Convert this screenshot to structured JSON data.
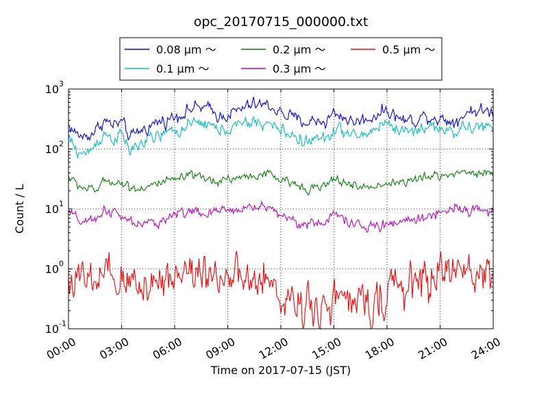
{
  "chart_data": {
    "type": "line",
    "title": "opc_20170715_000000.txt",
    "xlabel": "Time on 2017-07-15 (JST)",
    "ylabel": "Count / L",
    "xlim": [
      0,
      24
    ],
    "ylim": [
      0.1,
      1000
    ],
    "yscale": "log",
    "grid": true,
    "legend_placement": "top-center",
    "x_ticks": [
      {
        "v": 0,
        "label": "00:00"
      },
      {
        "v": 3,
        "label": "03:00"
      },
      {
        "v": 6,
        "label": "06:00"
      },
      {
        "v": 9,
        "label": "09:00"
      },
      {
        "v": 12,
        "label": "12:00"
      },
      {
        "v": 15,
        "label": "15:00"
      },
      {
        "v": 18,
        "label": "18:00"
      },
      {
        "v": 21,
        "label": "21:00"
      },
      {
        "v": 24,
        "label": "24:00"
      }
    ],
    "y_ticks": [
      {
        "v": 0.1,
        "base": "10",
        "exp": "-1"
      },
      {
        "v": 1,
        "base": "10",
        "exp": "0"
      },
      {
        "v": 10,
        "base": "10",
        "exp": "1"
      },
      {
        "v": 100,
        "base": "10",
        "exp": "2"
      },
      {
        "v": 1000,
        "base": "10",
        "exp": "3"
      }
    ],
    "x": [
      0,
      0.5,
      1,
      1.5,
      2,
      2.5,
      3,
      3.5,
      4,
      4.5,
      5,
      5.5,
      6,
      6.5,
      7,
      7.5,
      8,
      8.5,
      9,
      9.5,
      10,
      10.5,
      11,
      11.5,
      12,
      12.5,
      13,
      13.5,
      14,
      14.5,
      15,
      15.5,
      16,
      16.5,
      17,
      17.5,
      18,
      18.5,
      19,
      19.5,
      20,
      20.5,
      21,
      21.5,
      22,
      22.5,
      23,
      23.5,
      24
    ],
    "series": [
      {
        "name": "0.08 μm ～",
        "color": "#0000ff",
        "noise": 0.05,
        "values": [
          250,
          170,
          160,
          200,
          300,
          250,
          280,
          150,
          200,
          230,
          280,
          300,
          350,
          400,
          480,
          500,
          450,
          350,
          380,
          420,
          500,
          550,
          550,
          500,
          400,
          350,
          300,
          280,
          300,
          280,
          400,
          350,
          280,
          300,
          320,
          400,
          450,
          350,
          300,
          300,
          350,
          350,
          320,
          300,
          300,
          420,
          450,
          420,
          420
        ]
      },
      {
        "name": "0.1 μm ～",
        "color": "#00bfbf",
        "noise": 0.05,
        "values": [
          150,
          90,
          80,
          120,
          180,
          150,
          170,
          90,
          120,
          140,
          160,
          180,
          200,
          220,
          250,
          280,
          250,
          200,
          220,
          240,
          260,
          280,
          270,
          250,
          200,
          180,
          150,
          130,
          150,
          140,
          220,
          200,
          160,
          170,
          180,
          250,
          280,
          220,
          200,
          200,
          230,
          240,
          220,
          200,
          200,
          220,
          240,
          230,
          220
        ]
      },
      {
        "name": "0.2 μm ～",
        "color": "#008000",
        "noise": 0.035,
        "values": [
          35,
          25,
          22,
          20,
          28,
          30,
          27,
          23,
          22,
          24,
          26,
          28,
          30,
          33,
          35,
          32,
          30,
          30,
          32,
          33,
          34,
          36,
          38,
          36,
          30,
          27,
          25,
          23,
          22,
          24,
          30,
          29,
          25,
          23,
          23,
          25,
          27,
          28,
          28,
          30,
          32,
          35,
          36,
          38,
          40,
          42,
          40,
          40,
          40
        ]
      },
      {
        "name": "0.3 μm ～",
        "color": "#bf00bf",
        "noise": 0.04,
        "values": [
          9,
          6.5,
          6,
          6,
          10,
          9,
          7,
          6,
          5.5,
          5.5,
          6,
          7,
          8,
          9,
          9.5,
          8,
          8,
          9,
          10,
          10,
          10,
          11,
          11,
          10,
          8,
          7,
          6,
          5.5,
          5.5,
          6,
          8,
          7.5,
          5.5,
          5,
          5,
          5,
          5.5,
          6,
          6.5,
          6.5,
          7,
          8,
          9,
          10,
          11,
          10,
          9.5,
          9.5,
          9.5
        ]
      },
      {
        "name": "0.5 μm ～",
        "color": "#ff0000",
        "noise": 0.16,
        "values": [
          0.7,
          0.6,
          0.6,
          0.55,
          0.7,
          0.6,
          0.55,
          0.6,
          0.55,
          0.6,
          0.65,
          0.75,
          0.8,
          0.9,
          0.95,
          0.9,
          1.0,
          0.8,
          0.7,
          0.6,
          0.6,
          0.55,
          0.55,
          0.5,
          0.35,
          0.3,
          0.3,
          0.28,
          0.25,
          0.25,
          0.3,
          0.3,
          0.25,
          0.25,
          0.28,
          0.3,
          0.4,
          0.45,
          0.5,
          0.55,
          0.6,
          0.7,
          0.8,
          1.0,
          0.95,
          0.9,
          0.85,
          0.8,
          0.8
        ]
      }
    ]
  }
}
